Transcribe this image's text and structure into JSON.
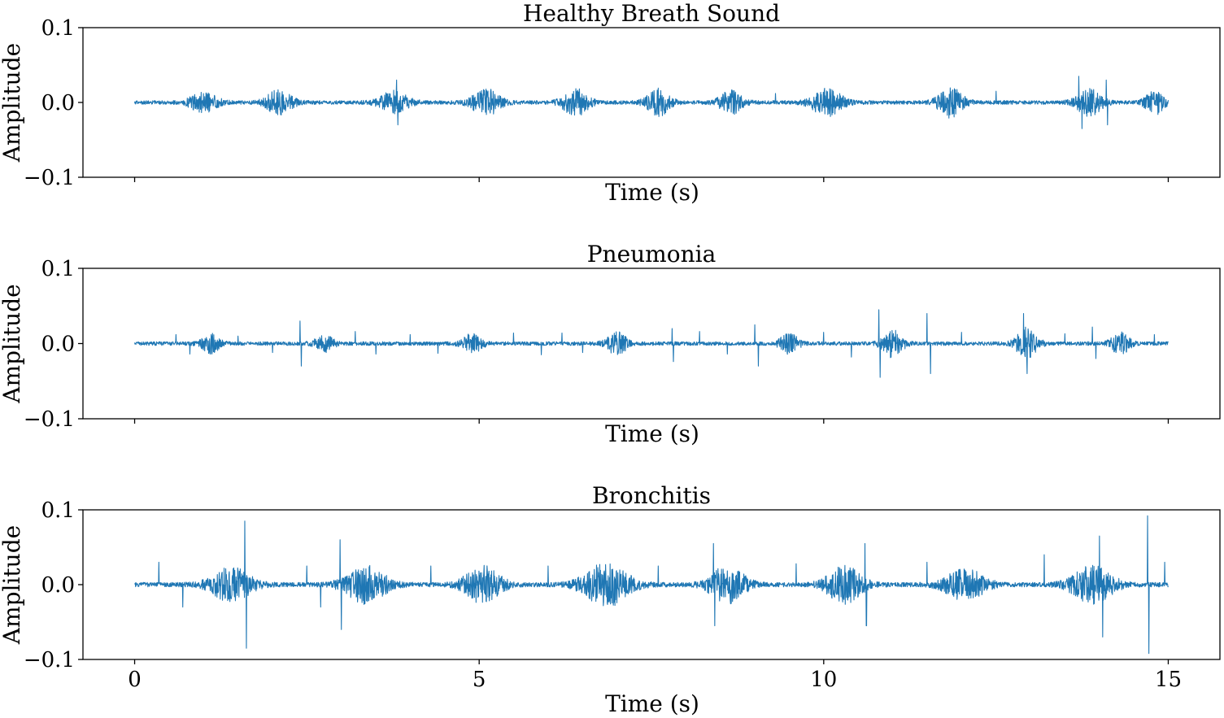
{
  "chart_data": [
    {
      "type": "line",
      "title": "Healthy Breath Sound",
      "xlabel": "Time (s)",
      "ylabel": "Amplitude",
      "xlim": [
        -0.75,
        15.75
      ],
      "ylim": [
        -0.1,
        0.1
      ],
      "xticks": [
        0,
        5,
        10,
        15
      ],
      "show_xtick_labels": false,
      "yticks": [
        {
          "value": 0.1,
          "label": "0.1"
        },
        {
          "value": 0.0,
          "label": "0.0"
        },
        {
          "value": -0.1,
          "label": "−0.1"
        }
      ],
      "color": "#1f77b4",
      "duration": 15,
      "baseline_noise": 0.0025,
      "seed": 11,
      "bursts": [
        {
          "t": 1.0,
          "w": 0.55,
          "a": 0.012
        },
        {
          "t": 2.1,
          "w": 0.5,
          "a": 0.016
        },
        {
          "t": 3.75,
          "w": 0.6,
          "a": 0.014
        },
        {
          "t": 5.1,
          "w": 0.55,
          "a": 0.017
        },
        {
          "t": 6.4,
          "w": 0.5,
          "a": 0.017
        },
        {
          "t": 7.6,
          "w": 0.45,
          "a": 0.017
        },
        {
          "t": 8.65,
          "w": 0.45,
          "a": 0.015
        },
        {
          "t": 10.05,
          "w": 0.6,
          "a": 0.017
        },
        {
          "t": 11.85,
          "w": 0.5,
          "a": 0.019
        },
        {
          "t": 13.85,
          "w": 0.5,
          "a": 0.017
        },
        {
          "t": 14.8,
          "w": 0.35,
          "a": 0.016
        }
      ],
      "spikes": [
        {
          "t": 3.8,
          "a": 0.03
        },
        {
          "t": 3.82,
          "a": -0.03
        },
        {
          "t": 13.7,
          "a": 0.035
        },
        {
          "t": 13.75,
          "a": -0.035
        },
        {
          "t": 14.1,
          "a": 0.03
        },
        {
          "t": 14.12,
          "a": -0.03
        },
        {
          "t": 12.5,
          "a": 0.015
        },
        {
          "t": 9.3,
          "a": 0.012
        }
      ]
    },
    {
      "type": "line",
      "title": "Pneumonia",
      "xlabel": "Time (s)",
      "ylabel": "Amplitude",
      "xlim": [
        -0.75,
        15.75
      ],
      "ylim": [
        -0.1,
        0.1
      ],
      "xticks": [
        0,
        5,
        10,
        15
      ],
      "show_xtick_labels": false,
      "yticks": [
        {
          "value": 0.1,
          "label": "0.1"
        },
        {
          "value": 0.0,
          "label": "0.0"
        },
        {
          "value": -0.1,
          "label": "−0.1"
        }
      ],
      "color": "#1f77b4",
      "duration": 15,
      "baseline_noise": 0.0025,
      "seed": 23,
      "bursts": [
        {
          "t": 1.1,
          "w": 0.35,
          "a": 0.012
        },
        {
          "t": 2.75,
          "w": 0.35,
          "a": 0.011
        },
        {
          "t": 4.9,
          "w": 0.4,
          "a": 0.012
        },
        {
          "t": 7.0,
          "w": 0.4,
          "a": 0.014
        },
        {
          "t": 9.5,
          "w": 0.35,
          "a": 0.013
        },
        {
          "t": 11.0,
          "w": 0.4,
          "a": 0.017
        },
        {
          "t": 12.95,
          "w": 0.4,
          "a": 0.02
        },
        {
          "t": 14.3,
          "w": 0.35,
          "a": 0.014
        }
      ],
      "spikes": [
        {
          "t": 0.6,
          "a": 0.012
        },
        {
          "t": 0.8,
          "a": -0.014
        },
        {
          "t": 1.5,
          "a": 0.01
        },
        {
          "t": 2.0,
          "a": -0.012
        },
        {
          "t": 2.4,
          "a": 0.03
        },
        {
          "t": 2.42,
          "a": -0.03
        },
        {
          "t": 3.2,
          "a": 0.016
        },
        {
          "t": 3.5,
          "a": -0.014
        },
        {
          "t": 4.0,
          "a": 0.012
        },
        {
          "t": 4.4,
          "a": -0.013
        },
        {
          "t": 5.5,
          "a": 0.014
        },
        {
          "t": 5.9,
          "a": -0.015
        },
        {
          "t": 6.2,
          "a": 0.014
        },
        {
          "t": 6.5,
          "a": -0.012
        },
        {
          "t": 7.8,
          "a": 0.02
        },
        {
          "t": 7.82,
          "a": -0.024
        },
        {
          "t": 8.2,
          "a": 0.016
        },
        {
          "t": 8.6,
          "a": -0.014
        },
        {
          "t": 9.0,
          "a": 0.025
        },
        {
          "t": 9.05,
          "a": -0.03
        },
        {
          "t": 10.0,
          "a": 0.015
        },
        {
          "t": 10.4,
          "a": -0.018
        },
        {
          "t": 10.8,
          "a": 0.045
        },
        {
          "t": 10.82,
          "a": -0.045
        },
        {
          "t": 11.5,
          "a": 0.04
        },
        {
          "t": 11.55,
          "a": -0.04
        },
        {
          "t": 12.0,
          "a": 0.015
        },
        {
          "t": 12.9,
          "a": 0.04
        },
        {
          "t": 12.95,
          "a": -0.04
        },
        {
          "t": 13.5,
          "a": 0.013
        },
        {
          "t": 13.9,
          "a": 0.022
        },
        {
          "t": 13.95,
          "a": -0.02
        },
        {
          "t": 14.8,
          "a": 0.012
        }
      ]
    },
    {
      "type": "line",
      "title": "Bronchitis",
      "xlabel": "Time (s)",
      "ylabel": "Amplitude",
      "xlim": [
        -0.75,
        15.75
      ],
      "ylim": [
        -0.1,
        0.1
      ],
      "xticks": [
        0,
        5,
        10,
        15
      ],
      "show_xtick_labels": true,
      "xtick_labels": [
        "0",
        "5",
        "10",
        "15"
      ],
      "yticks": [
        {
          "value": 0.1,
          "label": "0.1"
        },
        {
          "value": 0.0,
          "label": "0.0"
        },
        {
          "value": -0.1,
          "label": "−0.1"
        }
      ],
      "color": "#1f77b4",
      "duration": 15,
      "baseline_noise": 0.003,
      "seed": 37,
      "bursts": [
        {
          "t": 1.4,
          "w": 0.8,
          "a": 0.022
        },
        {
          "t": 3.35,
          "w": 0.8,
          "a": 0.024
        },
        {
          "t": 5.05,
          "w": 0.7,
          "a": 0.024
        },
        {
          "t": 6.85,
          "w": 0.9,
          "a": 0.028
        },
        {
          "t": 8.6,
          "w": 0.7,
          "a": 0.024
        },
        {
          "t": 10.3,
          "w": 0.7,
          "a": 0.024
        },
        {
          "t": 12.05,
          "w": 0.8,
          "a": 0.02
        },
        {
          "t": 13.9,
          "w": 0.8,
          "a": 0.024
        }
      ],
      "spikes": [
        {
          "t": 1.6,
          "a": 0.085
        },
        {
          "t": 1.62,
          "a": -0.085
        },
        {
          "t": 0.35,
          "a": 0.03
        },
        {
          "t": 0.7,
          "a": -0.03
        },
        {
          "t": 2.5,
          "a": 0.025
        },
        {
          "t": 2.7,
          "a": -0.03
        },
        {
          "t": 2.98,
          "a": 0.06
        },
        {
          "t": 3.0,
          "a": -0.06
        },
        {
          "t": 4.3,
          "a": 0.025
        },
        {
          "t": 6.0,
          "a": 0.025
        },
        {
          "t": 7.6,
          "a": 0.025
        },
        {
          "t": 8.4,
          "a": 0.055
        },
        {
          "t": 8.42,
          "a": -0.055
        },
        {
          "t": 9.6,
          "a": 0.028
        },
        {
          "t": 10.6,
          "a": 0.055
        },
        {
          "t": 10.62,
          "a": -0.055
        },
        {
          "t": 11.5,
          "a": 0.03
        },
        {
          "t": 13.2,
          "a": 0.04
        },
        {
          "t": 14.0,
          "a": 0.065
        },
        {
          "t": 14.05,
          "a": -0.07
        },
        {
          "t": 14.7,
          "a": 0.092
        },
        {
          "t": 14.72,
          "a": -0.092
        },
        {
          "t": 14.95,
          "a": 0.03
        }
      ]
    }
  ]
}
